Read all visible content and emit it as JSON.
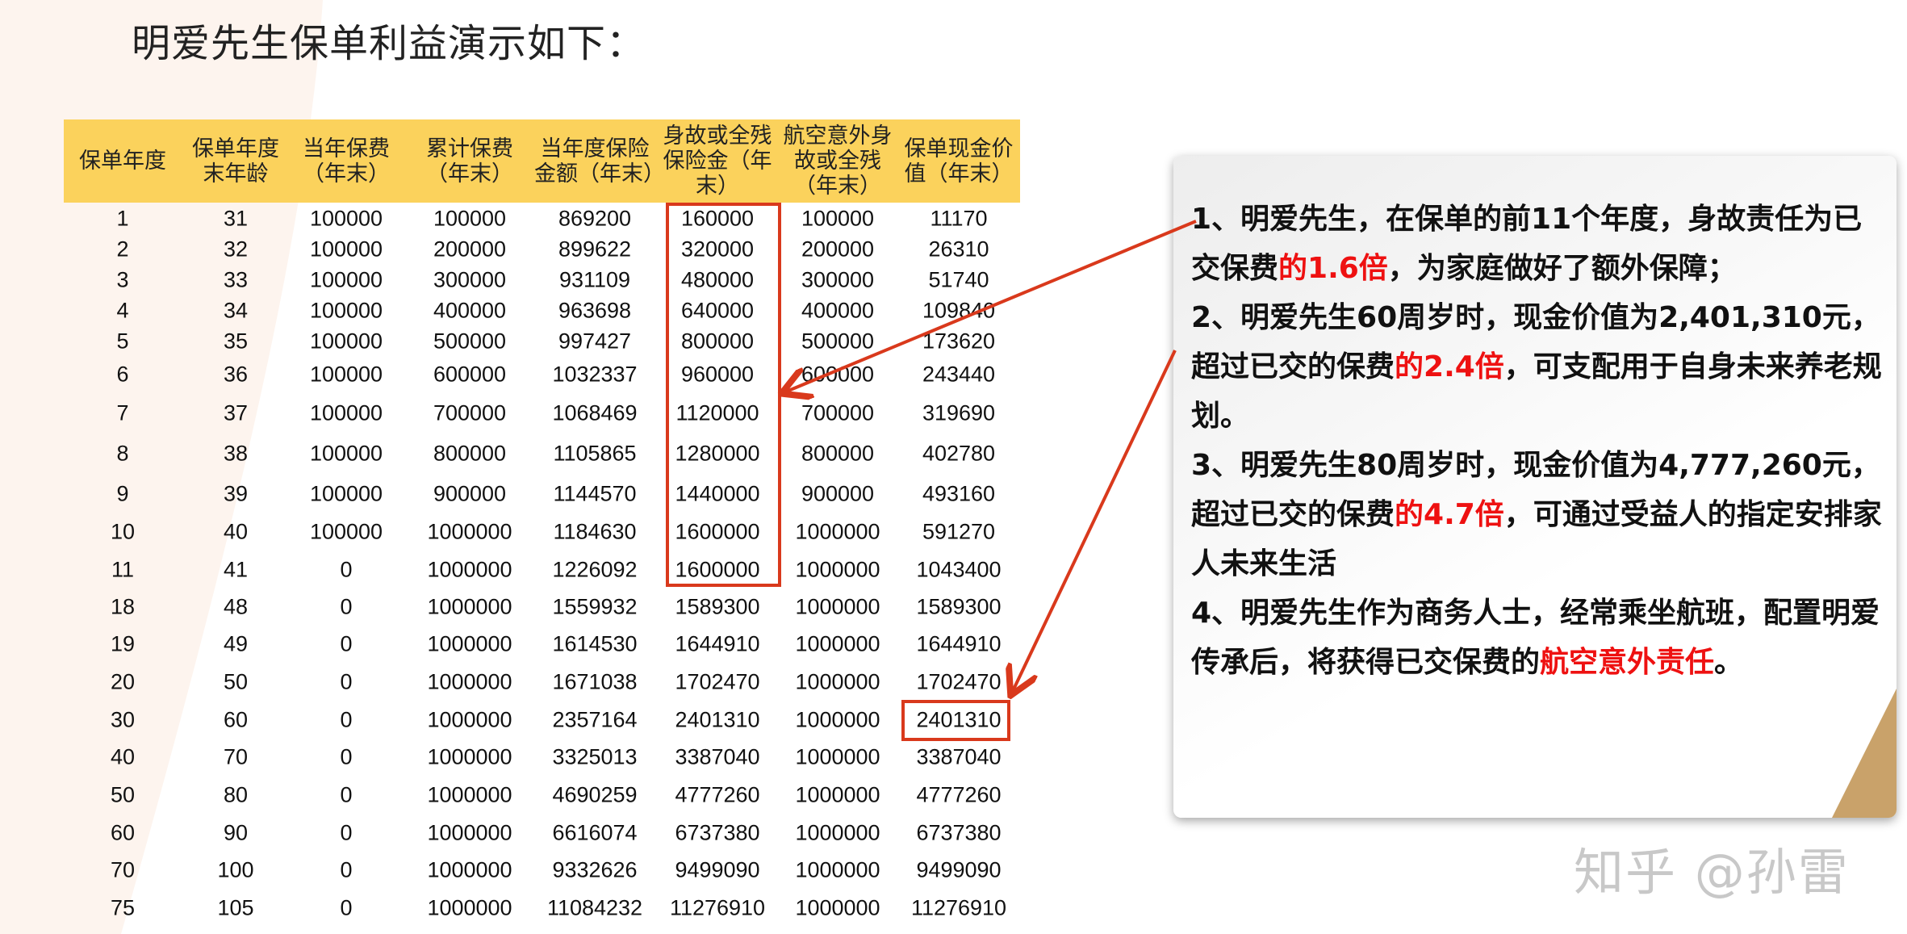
{
  "title": "明爱先生保单利益演示如下：",
  "colors": {
    "header_bg": "#fbd25c",
    "highlight": "#d9391c",
    "emphasis_text": "#ee1111",
    "accent_triangle": "#c9a26a"
  },
  "table": {
    "headers": [
      [
        "保单年度"
      ],
      [
        "保单年度",
        "末年龄"
      ],
      [
        "当年保费",
        "（年末）"
      ],
      [
        "累计保费",
        "（年末）"
      ],
      [
        "当年度保险",
        "金额（年末）"
      ],
      [
        "身故或全残",
        "保险金（年",
        "末）"
      ],
      [
        "航空意外身",
        "故或全残",
        "（年末）"
      ],
      [
        "保单现金价",
        "值（年末）"
      ]
    ],
    "rows": [
      [
        "1",
        "31",
        "100000",
        "100000",
        "869200",
        "160000",
        "100000",
        "11170"
      ],
      [
        "2",
        "32",
        "100000",
        "200000",
        "899622",
        "320000",
        "200000",
        "26310"
      ],
      [
        "3",
        "33",
        "100000",
        "300000",
        "931109",
        "480000",
        "300000",
        "51740"
      ],
      [
        "4",
        "34",
        "100000",
        "400000",
        "963698",
        "640000",
        "400000",
        "109840"
      ],
      [
        "5",
        "35",
        "100000",
        "500000",
        "997427",
        "800000",
        "500000",
        "173620"
      ],
      [
        "6",
        "36",
        "100000",
        "600000",
        "1032337",
        "960000",
        "600000",
        "243440"
      ],
      [
        "7",
        "37",
        "100000",
        "700000",
        "1068469",
        "1120000",
        "700000",
        "319690"
      ],
      [
        "8",
        "38",
        "100000",
        "800000",
        "1105865",
        "1280000",
        "800000",
        "402780"
      ],
      [
        "9",
        "39",
        "100000",
        "900000",
        "1144570",
        "1440000",
        "900000",
        "493160"
      ],
      [
        "10",
        "40",
        "100000",
        "1000000",
        "1184630",
        "1600000",
        "1000000",
        "591270"
      ],
      [
        "11",
        "41",
        "0",
        "1000000",
        "1226092",
        "1600000",
        "1000000",
        "1043400"
      ],
      [
        "18",
        "48",
        "0",
        "1000000",
        "1559932",
        "1589300",
        "1000000",
        "1589300"
      ],
      [
        "19",
        "49",
        "0",
        "1000000",
        "1614530",
        "1644910",
        "1000000",
        "1644910"
      ],
      [
        "20",
        "50",
        "0",
        "1000000",
        "1671038",
        "1702470",
        "1000000",
        "1702470"
      ],
      [
        "30",
        "60",
        "0",
        "1000000",
        "2357164",
        "2401310",
        "1000000",
        "2401310"
      ],
      [
        "40",
        "70",
        "0",
        "1000000",
        "3325013",
        "3387040",
        "1000000",
        "3387040"
      ],
      [
        "50",
        "80",
        "0",
        "1000000",
        "4690259",
        "4777260",
        "1000000",
        "4777260"
      ],
      [
        "60",
        "90",
        "0",
        "1000000",
        "6616074",
        "6737380",
        "1000000",
        "6737380"
      ],
      [
        "70",
        "100",
        "0",
        "1000000",
        "9332626",
        "9499090",
        "1000000",
        "9499090"
      ],
      [
        "75",
        "105",
        "0",
        "1000000",
        "11084232",
        "11276910",
        "1000000",
        "11276910"
      ]
    ]
  },
  "notes": [
    [
      {
        "t": "1、明爱先生，在保单的前11个年度，身故责任为已交保费"
      },
      {
        "t": "的1.6倍",
        "red": true
      },
      {
        "t": "，为家庭做好了额外保障；"
      }
    ],
    [
      {
        "t": "2、明爱先生60周岁时，现金价值为2,401,310元，超过已交的保费"
      },
      {
        "t": "的2.4倍",
        "red": true
      },
      {
        "t": "，可支配用于自身未来养老规划。"
      }
    ],
    [
      {
        "t": "3、明爱先生80周岁时，现金价值为4,777,260元，超过已交的保费"
      },
      {
        "t": "的4.7倍",
        "red": true
      },
      {
        "t": "，可通过受益人的指定安排家人未来生活"
      }
    ],
    [
      {
        "t": "4、明爱先生作为商务人士，经常乘坐航班，配置明爱传承后，将获得已交保费的"
      },
      {
        "t": "航空意外责任",
        "red": true
      },
      {
        "t": "。"
      }
    ]
  ],
  "watermark": "知乎 @孙雷"
}
